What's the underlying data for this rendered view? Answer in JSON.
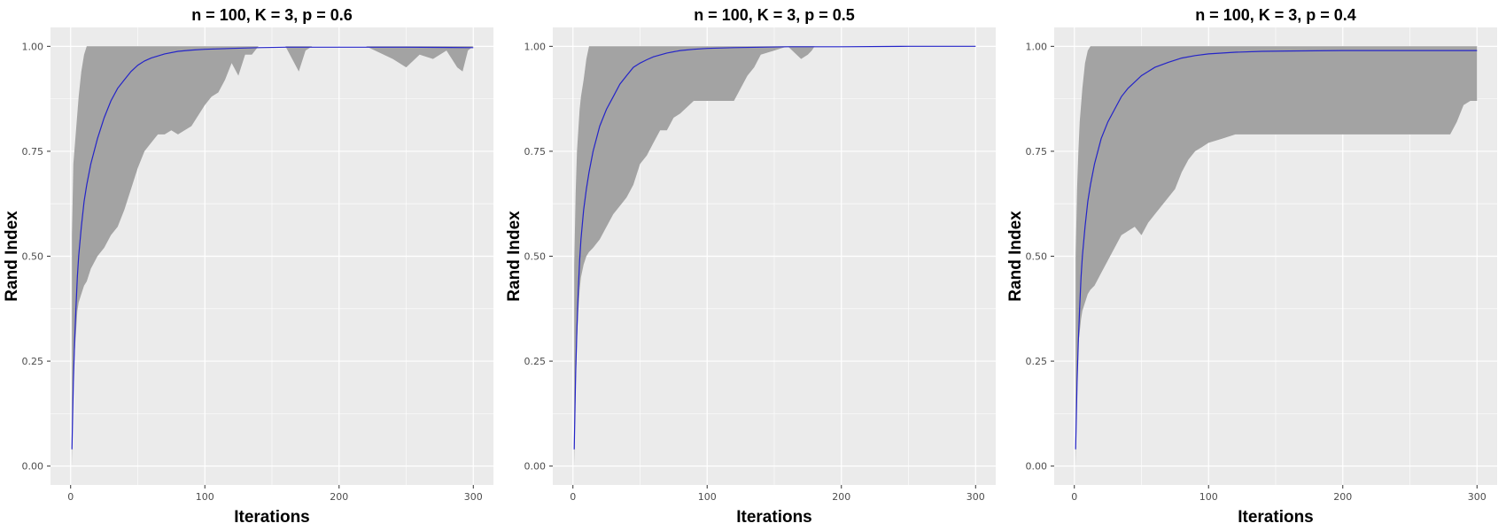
{
  "chart_data": [
    {
      "type": "area",
      "title": "n = 100, K = 3, p = 0.6",
      "xlabel": "Iterations",
      "ylabel": "Rand Index",
      "xlim": [
        -15,
        315
      ],
      "ylim": [
        -0.045,
        1.045
      ],
      "x_ticks": [
        0,
        100,
        200,
        300
      ],
      "x_tick_labels": [
        "0",
        "100",
        "200",
        "300"
      ],
      "y_ticks": [
        0,
        0.25,
        0.5,
        0.75,
        1
      ],
      "y_tick_labels": [
        "0.00",
        "0.25",
        "0.50",
        "0.75",
        "1.00"
      ],
      "grid": true,
      "colors": {
        "band": "#a3a3a3",
        "mean": "#2424c8",
        "panel": "#ebebeb",
        "grid": "#ffffff"
      },
      "series": [
        {
          "role": "band",
          "x": [
            1,
            2,
            3,
            4,
            5,
            6,
            8,
            10,
            12,
            15,
            20,
            25,
            30,
            35,
            40,
            45,
            50,
            55,
            60,
            65,
            70,
            75,
            80,
            90,
            100,
            105,
            110,
            115,
            120,
            125,
            130,
            135,
            140,
            150,
            160,
            170,
            175,
            180,
            190,
            200,
            220,
            240,
            250,
            260,
            270,
            280,
            288,
            292,
            296,
            300
          ],
          "upper": [
            0.55,
            0.72,
            0.76,
            0.8,
            0.84,
            0.88,
            0.94,
            0.98,
            1,
            1,
            1,
            1,
            1,
            1,
            1,
            1,
            1,
            1,
            1,
            1,
            1,
            1,
            1,
            1,
            1,
            1,
            1,
            1,
            1,
            1,
            1,
            1,
            1,
            1,
            1,
            1,
            1,
            1,
            1,
            1,
            1,
            1,
            1,
            1,
            1,
            1,
            1,
            1,
            1,
            1
          ],
          "lower": [
            0,
            0.22,
            0.27,
            0.32,
            0.37,
            0.39,
            0.41,
            0.43,
            0.44,
            0.47,
            0.5,
            0.52,
            0.55,
            0.57,
            0.61,
            0.66,
            0.71,
            0.75,
            0.77,
            0.79,
            0.79,
            0.8,
            0.79,
            0.81,
            0.86,
            0.88,
            0.89,
            0.92,
            0.96,
            0.93,
            0.98,
            0.98,
            1,
            1,
            1,
            0.94,
            0.99,
            1,
            1,
            1,
            1,
            0.97,
            0.95,
            0.98,
            0.97,
            0.99,
            0.95,
            0.94,
            0.99,
            1
          ]
        },
        {
          "role": "mean",
          "x": [
            1,
            2,
            3,
            4,
            5,
            6,
            8,
            10,
            12,
            15,
            20,
            25,
            30,
            35,
            40,
            45,
            50,
            55,
            60,
            70,
            80,
            90,
            100,
            120,
            140,
            160,
            200,
            250,
            300
          ],
          "y": [
            0.04,
            0.2,
            0.3,
            0.38,
            0.45,
            0.5,
            0.57,
            0.63,
            0.67,
            0.72,
            0.78,
            0.83,
            0.87,
            0.9,
            0.92,
            0.94,
            0.955,
            0.965,
            0.972,
            0.982,
            0.988,
            0.991,
            0.993,
            0.995,
            0.997,
            0.998,
            0.998,
            0.998,
            0.997
          ]
        }
      ]
    },
    {
      "type": "area",
      "title": "n = 100, K = 3, p = 0.5",
      "xlabel": "Iterations",
      "ylabel": "Rand Index",
      "xlim": [
        -15,
        315
      ],
      "ylim": [
        -0.045,
        1.045
      ],
      "x_ticks": [
        0,
        100,
        200,
        300
      ],
      "x_tick_labels": [
        "0",
        "100",
        "200",
        "300"
      ],
      "y_ticks": [
        0,
        0.25,
        0.5,
        0.75,
        1
      ],
      "y_tick_labels": [
        "0.00",
        "0.25",
        "0.50",
        "0.75",
        "1.00"
      ],
      "grid": true,
      "colors": {
        "band": "#a3a3a3",
        "mean": "#2424c8",
        "panel": "#ebebeb",
        "grid": "#ffffff"
      },
      "series": [
        {
          "role": "band",
          "x": [
            1,
            2,
            3,
            4,
            5,
            6,
            8,
            10,
            12,
            15,
            20,
            25,
            30,
            35,
            40,
            45,
            50,
            55,
            60,
            65,
            70,
            75,
            80,
            90,
            100,
            110,
            120,
            125,
            130,
            135,
            140,
            150,
            160,
            170,
            175,
            178,
            180,
            200,
            250,
            300
          ],
          "upper": [
            0.48,
            0.65,
            0.75,
            0.8,
            0.85,
            0.88,
            0.92,
            0.97,
            1,
            1,
            1,
            1,
            1,
            1,
            1,
            1,
            1,
            1,
            1,
            1,
            1,
            1,
            1,
            1,
            1,
            1,
            1,
            1,
            1,
            1,
            1,
            1,
            1,
            1,
            1,
            1,
            1,
            1,
            1,
            1
          ],
          "lower": [
            0,
            0.18,
            0.3,
            0.37,
            0.42,
            0.45,
            0.48,
            0.5,
            0.51,
            0.52,
            0.54,
            0.57,
            0.6,
            0.62,
            0.64,
            0.67,
            0.72,
            0.74,
            0.77,
            0.8,
            0.8,
            0.83,
            0.84,
            0.87,
            0.87,
            0.87,
            0.87,
            0.9,
            0.93,
            0.95,
            0.98,
            0.99,
            1,
            0.97,
            0.98,
            0.99,
            1,
            1,
            1,
            1
          ]
        },
        {
          "role": "mean",
          "x": [
            1,
            2,
            3,
            4,
            5,
            6,
            8,
            10,
            12,
            15,
            20,
            25,
            30,
            35,
            40,
            45,
            50,
            55,
            60,
            70,
            80,
            90,
            100,
            120,
            140,
            160,
            200,
            250,
            300
          ],
          "y": [
            0.04,
            0.22,
            0.33,
            0.42,
            0.49,
            0.54,
            0.61,
            0.66,
            0.7,
            0.75,
            0.81,
            0.85,
            0.88,
            0.91,
            0.93,
            0.95,
            0.96,
            0.968,
            0.975,
            0.984,
            0.99,
            0.993,
            0.995,
            0.997,
            0.998,
            0.999,
            0.999,
            1,
            1
          ]
        }
      ]
    },
    {
      "type": "area",
      "title": "n = 100, K = 3, p = 0.4",
      "xlabel": "Iterations",
      "ylabel": "Rand Index",
      "xlim": [
        -15,
        315
      ],
      "ylim": [
        -0.045,
        1.045
      ],
      "x_ticks": [
        0,
        100,
        200,
        300
      ],
      "x_tick_labels": [
        "0",
        "100",
        "200",
        "300"
      ],
      "y_ticks": [
        0,
        0.25,
        0.5,
        0.75,
        1
      ],
      "y_tick_labels": [
        "0.00",
        "0.25",
        "0.50",
        "0.75",
        "1.00"
      ],
      "grid": true,
      "colors": {
        "band": "#a3a3a3",
        "mean": "#2424c8",
        "panel": "#ebebeb",
        "grid": "#ffffff"
      },
      "series": [
        {
          "role": "band",
          "x": [
            1,
            2,
            3,
            4,
            5,
            6,
            8,
            10,
            12,
            15,
            20,
            25,
            30,
            35,
            40,
            45,
            50,
            55,
            60,
            65,
            70,
            75,
            80,
            85,
            90,
            95,
            100,
            110,
            120,
            130,
            150,
            200,
            250,
            275,
            280,
            285,
            290,
            295,
            300
          ],
          "upper": [
            0.5,
            0.66,
            0.75,
            0.82,
            0.86,
            0.9,
            0.96,
            0.99,
            1,
            1,
            1,
            1,
            1,
            1,
            1,
            1,
            1,
            1,
            1,
            1,
            1,
            1,
            1,
            1,
            1,
            1,
            1,
            1,
            1,
            1,
            1,
            1,
            1,
            1,
            1,
            1,
            1,
            1,
            1
          ],
          "lower": [
            0,
            0.2,
            0.29,
            0.32,
            0.35,
            0.37,
            0.39,
            0.41,
            0.42,
            0.43,
            0.46,
            0.49,
            0.52,
            0.55,
            0.56,
            0.57,
            0.55,
            0.58,
            0.6,
            0.62,
            0.64,
            0.66,
            0.7,
            0.73,
            0.75,
            0.76,
            0.77,
            0.78,
            0.79,
            0.79,
            0.79,
            0.79,
            0.79,
            0.79,
            0.79,
            0.82,
            0.86,
            0.87,
            0.87
          ]
        },
        {
          "role": "mean",
          "x": [
            1,
            2,
            3,
            4,
            5,
            6,
            8,
            10,
            12,
            15,
            20,
            25,
            30,
            35,
            40,
            45,
            50,
            55,
            60,
            70,
            80,
            90,
            100,
            120,
            140,
            160,
            200,
            250,
            300
          ],
          "y": [
            0.04,
            0.2,
            0.3,
            0.38,
            0.45,
            0.5,
            0.57,
            0.63,
            0.67,
            0.72,
            0.78,
            0.82,
            0.85,
            0.88,
            0.9,
            0.915,
            0.93,
            0.94,
            0.95,
            0.962,
            0.972,
            0.978,
            0.982,
            0.986,
            0.988,
            0.989,
            0.99,
            0.99,
            0.99
          ]
        }
      ]
    }
  ]
}
